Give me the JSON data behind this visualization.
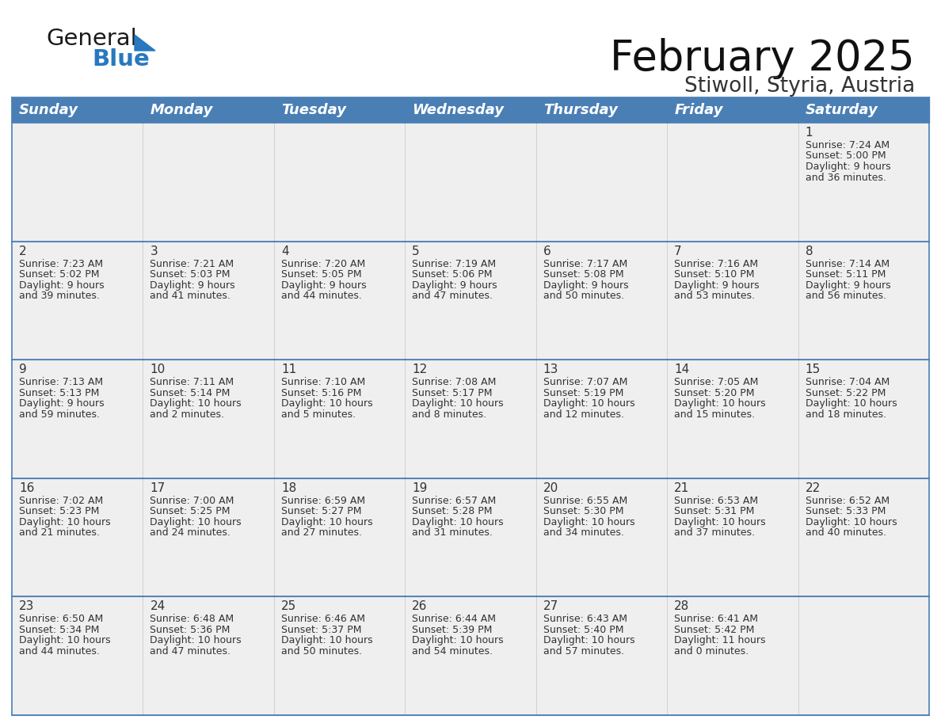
{
  "title": "February 2025",
  "subtitle": "Stiwoll, Styria, Austria",
  "days_of_week": [
    "Sunday",
    "Monday",
    "Tuesday",
    "Wednesday",
    "Thursday",
    "Friday",
    "Saturday"
  ],
  "header_bg": "#4A7FB5",
  "header_text": "#FFFFFF",
  "cell_bg": "#EFEFEF",
  "border_color": "#4A7FB5",
  "text_color": "#333333",
  "calendar_data": [
    [
      null,
      null,
      null,
      null,
      null,
      null,
      {
        "day": 1,
        "sunrise": "7:24 AM",
        "sunset": "5:00 PM",
        "daylight": "9 hours and 36 minutes"
      }
    ],
    [
      {
        "day": 2,
        "sunrise": "7:23 AM",
        "sunset": "5:02 PM",
        "daylight": "9 hours and 39 minutes"
      },
      {
        "day": 3,
        "sunrise": "7:21 AM",
        "sunset": "5:03 PM",
        "daylight": "9 hours and 41 minutes"
      },
      {
        "day": 4,
        "sunrise": "7:20 AM",
        "sunset": "5:05 PM",
        "daylight": "9 hours and 44 minutes"
      },
      {
        "day": 5,
        "sunrise": "7:19 AM",
        "sunset": "5:06 PM",
        "daylight": "9 hours and 47 minutes"
      },
      {
        "day": 6,
        "sunrise": "7:17 AM",
        "sunset": "5:08 PM",
        "daylight": "9 hours and 50 minutes"
      },
      {
        "day": 7,
        "sunrise": "7:16 AM",
        "sunset": "5:10 PM",
        "daylight": "9 hours and 53 minutes"
      },
      {
        "day": 8,
        "sunrise": "7:14 AM",
        "sunset": "5:11 PM",
        "daylight": "9 hours and 56 minutes"
      }
    ],
    [
      {
        "day": 9,
        "sunrise": "7:13 AM",
        "sunset": "5:13 PM",
        "daylight": "9 hours and 59 minutes"
      },
      {
        "day": 10,
        "sunrise": "7:11 AM",
        "sunset": "5:14 PM",
        "daylight": "10 hours and 2 minutes"
      },
      {
        "day": 11,
        "sunrise": "7:10 AM",
        "sunset": "5:16 PM",
        "daylight": "10 hours and 5 minutes"
      },
      {
        "day": 12,
        "sunrise": "7:08 AM",
        "sunset": "5:17 PM",
        "daylight": "10 hours and 8 minutes"
      },
      {
        "day": 13,
        "sunrise": "7:07 AM",
        "sunset": "5:19 PM",
        "daylight": "10 hours and 12 minutes"
      },
      {
        "day": 14,
        "sunrise": "7:05 AM",
        "sunset": "5:20 PM",
        "daylight": "10 hours and 15 minutes"
      },
      {
        "day": 15,
        "sunrise": "7:04 AM",
        "sunset": "5:22 PM",
        "daylight": "10 hours and 18 minutes"
      }
    ],
    [
      {
        "day": 16,
        "sunrise": "7:02 AM",
        "sunset": "5:23 PM",
        "daylight": "10 hours and 21 minutes"
      },
      {
        "day": 17,
        "sunrise": "7:00 AM",
        "sunset": "5:25 PM",
        "daylight": "10 hours and 24 minutes"
      },
      {
        "day": 18,
        "sunrise": "6:59 AM",
        "sunset": "5:27 PM",
        "daylight": "10 hours and 27 minutes"
      },
      {
        "day": 19,
        "sunrise": "6:57 AM",
        "sunset": "5:28 PM",
        "daylight": "10 hours and 31 minutes"
      },
      {
        "day": 20,
        "sunrise": "6:55 AM",
        "sunset": "5:30 PM",
        "daylight": "10 hours and 34 minutes"
      },
      {
        "day": 21,
        "sunrise": "6:53 AM",
        "sunset": "5:31 PM",
        "daylight": "10 hours and 37 minutes"
      },
      {
        "day": 22,
        "sunrise": "6:52 AM",
        "sunset": "5:33 PM",
        "daylight": "10 hours and 40 minutes"
      }
    ],
    [
      {
        "day": 23,
        "sunrise": "6:50 AM",
        "sunset": "5:34 PM",
        "daylight": "10 hours and 44 minutes"
      },
      {
        "day": 24,
        "sunrise": "6:48 AM",
        "sunset": "5:36 PM",
        "daylight": "10 hours and 47 minutes"
      },
      {
        "day": 25,
        "sunrise": "6:46 AM",
        "sunset": "5:37 PM",
        "daylight": "10 hours and 50 minutes"
      },
      {
        "day": 26,
        "sunrise": "6:44 AM",
        "sunset": "5:39 PM",
        "daylight": "10 hours and 54 minutes"
      },
      {
        "day": 27,
        "sunrise": "6:43 AM",
        "sunset": "5:40 PM",
        "daylight": "10 hours and 57 minutes"
      },
      {
        "day": 28,
        "sunrise": "6:41 AM",
        "sunset": "5:42 PM",
        "daylight": "11 hours and 0 minutes"
      },
      null
    ]
  ],
  "title_fontsize": 38,
  "subtitle_fontsize": 19,
  "header_fontsize": 13,
  "day_num_fontsize": 11,
  "cell_text_fontsize": 9,
  "logo_general_color": "#1a1a1a",
  "logo_blue_color": "#2878C0",
  "logo_triangle_color": "#2878C0"
}
